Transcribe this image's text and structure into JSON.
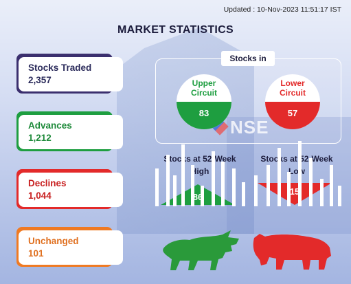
{
  "header": {
    "updated": "Updated : 10-Nov-2023 11:51:17 IST",
    "title": "MARKET STATISTICS"
  },
  "stats": [
    {
      "label": "Stocks Traded",
      "value": "2,357",
      "color": "#3b2f6e",
      "label_color": "#2a2a5a"
    },
    {
      "label": "Advances",
      "value": "1,212",
      "color": "#1e9e40",
      "label_color": "#1e8a3a"
    },
    {
      "label": "Declines",
      "value": "1,044",
      "color": "#e32a2a",
      "label_color": "#c82020"
    },
    {
      "label": "Unchanged",
      "value": "101",
      "color": "#f07a22",
      "label_color": "#e07020"
    }
  ],
  "stocks_in": {
    "label": "Stocks in",
    "upper_circuit": {
      "label_line1": "Upper",
      "label_line2": "Circuit",
      "value": "83",
      "color": "#1e9e40"
    },
    "lower_circuit": {
      "label_line1": "Lower",
      "label_line2": "Circuit",
      "value": "57",
      "color": "#e32a2a"
    }
  },
  "week52": {
    "high": {
      "label_line1": "Stocks at 52-Week",
      "label_line2": "High",
      "value": "86",
      "color": "#1e9e40"
    },
    "low": {
      "label_line1": "Stocks at 52-Week",
      "label_line2": "Low",
      "value": "15",
      "color": "#e32a2a"
    }
  },
  "icons": {
    "bull": "bull-icon",
    "bear": "bear-icon"
  }
}
